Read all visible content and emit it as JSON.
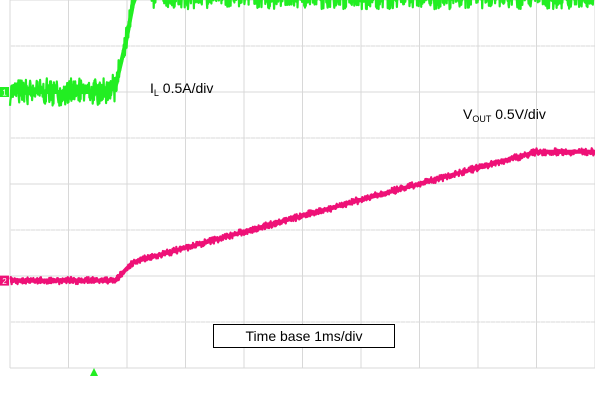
{
  "chart_data": {
    "type": "line",
    "grid": true,
    "x_divisions": 10,
    "y_divisions": 8,
    "annotations": {
      "il_main": "I",
      "il_sub": "L",
      "il_scale": "0.5A/div",
      "vout_main": "V",
      "vout_sub": "OUT",
      "vout_scale": "0.5V/div",
      "timebase": "Time base 1ms/div"
    },
    "series": [
      {
        "name": "IL",
        "color": "#22ee22",
        "x": [
          0,
          1.6,
          1.8,
          2.0,
          2.1,
          2.25,
          2.4,
          10
        ],
        "y": [
          6.0,
          6.0,
          6.1,
          7.2,
          7.9,
          8.4,
          8.1,
          8.1
        ],
        "noise": 0.3
      },
      {
        "name": "VOUT",
        "color": "#ee1177",
        "x": [
          0,
          1.8,
          2.1,
          9.0,
          10
        ],
        "y": [
          1.9,
          1.9,
          2.3,
          4.7,
          4.7
        ],
        "noise": 0.08
      }
    ],
    "markers": [
      {
        "label": "1",
        "color": "#22ee22",
        "y": 6.0
      },
      {
        "label": "2",
        "color": "#ee1177",
        "y": 1.9
      }
    ]
  }
}
